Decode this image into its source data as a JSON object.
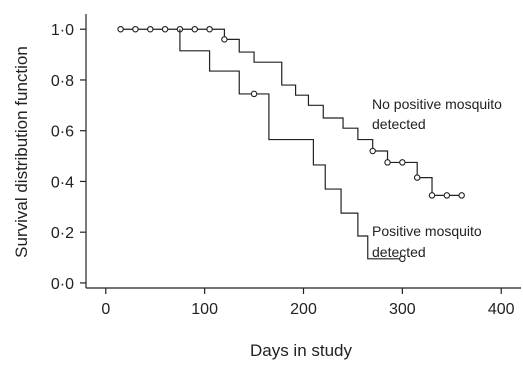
{
  "chart_data": {
    "type": "line",
    "title": "",
    "xlabel": "Days in study",
    "ylabel": "Survival distribution function",
    "xlim": [
      -20,
      420
    ],
    "ylim": [
      -0.02,
      1.06
    ],
    "x_ticks": [
      0,
      100,
      200,
      300,
      400
    ],
    "x_tick_labels": [
      "0",
      "100",
      "200",
      "300",
      "400"
    ],
    "y_ticks": [
      0,
      0.2,
      0.4,
      0.6,
      0.8,
      1.0
    ],
    "y_tick_labels": [
      "0·0",
      "0·2",
      "0·4",
      "0·6",
      "0·8",
      "1·0"
    ],
    "grid": false,
    "series": [
      {
        "name": "No positive mosquito detected",
        "label_lines": [
          "No positive mosquito",
          "detected"
        ],
        "step_points": [
          [
            15,
            1.0
          ],
          [
            120,
            1.0
          ],
          [
            120,
            0.96
          ],
          [
            135,
            0.96
          ],
          [
            135,
            0.91
          ],
          [
            150,
            0.91
          ],
          [
            150,
            0.87
          ],
          [
            178,
            0.87
          ],
          [
            178,
            0.78
          ],
          [
            192,
            0.78
          ],
          [
            192,
            0.74
          ],
          [
            205,
            0.74
          ],
          [
            205,
            0.7
          ],
          [
            220,
            0.7
          ],
          [
            220,
            0.65
          ],
          [
            240,
            0.65
          ],
          [
            240,
            0.61
          ],
          [
            255,
            0.61
          ],
          [
            255,
            0.565
          ],
          [
            270,
            0.565
          ],
          [
            270,
            0.52
          ],
          [
            285,
            0.52
          ],
          [
            285,
            0.475
          ],
          [
            315,
            0.475
          ],
          [
            315,
            0.415
          ],
          [
            330,
            0.415
          ],
          [
            330,
            0.345
          ],
          [
            360,
            0.345
          ]
        ],
        "censored": [
          [
            15,
            1.0
          ],
          [
            30,
            1.0
          ],
          [
            45,
            1.0
          ],
          [
            60,
            1.0
          ],
          [
            75,
            1.0
          ],
          [
            90,
            1.0
          ],
          [
            105,
            1.0
          ],
          [
            120,
            0.96
          ],
          [
            270,
            0.52
          ],
          [
            285,
            0.475
          ],
          [
            300,
            0.475
          ],
          [
            315,
            0.415
          ],
          [
            330,
            0.345
          ],
          [
            345,
            0.345
          ],
          [
            360,
            0.345
          ]
        ]
      },
      {
        "name": "Positive mosquito detected",
        "label_lines": [
          "Positive mosquito",
          "detected"
        ],
        "step_points": [
          [
            75,
            1.0
          ],
          [
            75,
            0.915
          ],
          [
            105,
            0.915
          ],
          [
            105,
            0.835
          ],
          [
            135,
            0.835
          ],
          [
            135,
            0.745
          ],
          [
            165,
            0.745
          ],
          [
            165,
            0.565
          ],
          [
            210,
            0.565
          ],
          [
            210,
            0.465
          ],
          [
            222,
            0.465
          ],
          [
            222,
            0.37
          ],
          [
            238,
            0.37
          ],
          [
            238,
            0.275
          ],
          [
            255,
            0.275
          ],
          [
            255,
            0.185
          ],
          [
            265,
            0.185
          ],
          [
            265,
            0.095
          ],
          [
            300,
            0.095
          ]
        ],
        "censored": [
          [
            150,
            0.745
          ],
          [
            300,
            0.095
          ]
        ]
      }
    ]
  }
}
